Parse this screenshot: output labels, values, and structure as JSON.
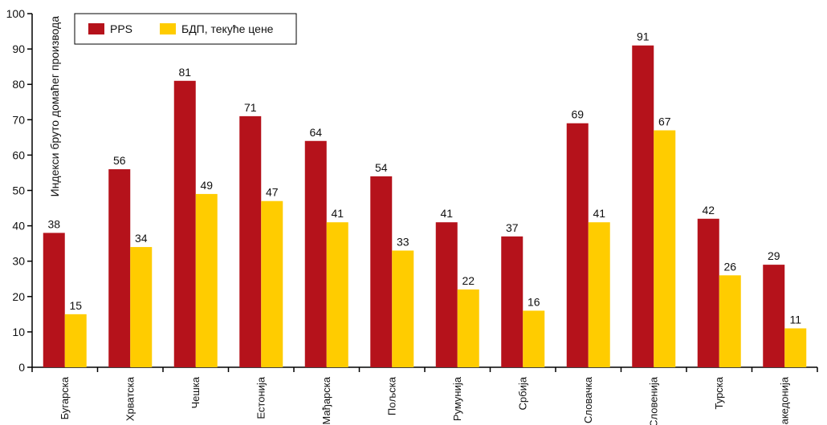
{
  "chart_data": {
    "type": "bar",
    "title": "",
    "xlabel": "",
    "ylabel": "Индекси бруто домаћег производа",
    "ylim": [
      0,
      100
    ],
    "yticks": [
      0,
      10,
      20,
      30,
      40,
      50,
      60,
      70,
      80,
      90,
      100
    ],
    "grid": false,
    "legend_position": "top-left",
    "categories": [
      "Бугарска",
      "Хрватска",
      "Чешка",
      "Естонија",
      "Мађарска",
      "Пољска",
      "Румунија",
      "Србија",
      "Словачка",
      "Словенија",
      "Турска",
      "Македонија"
    ],
    "series": [
      {
        "name": "PPS",
        "color": "#b5121b",
        "values": [
          38,
          56,
          81,
          71,
          64,
          54,
          41,
          37,
          69,
          91,
          42,
          29
        ]
      },
      {
        "name": "БДП, текуће цене",
        "color": "#ffcc00",
        "values": [
          15,
          34,
          49,
          47,
          41,
          33,
          22,
          16,
          41,
          67,
          26,
          11
        ]
      }
    ]
  }
}
